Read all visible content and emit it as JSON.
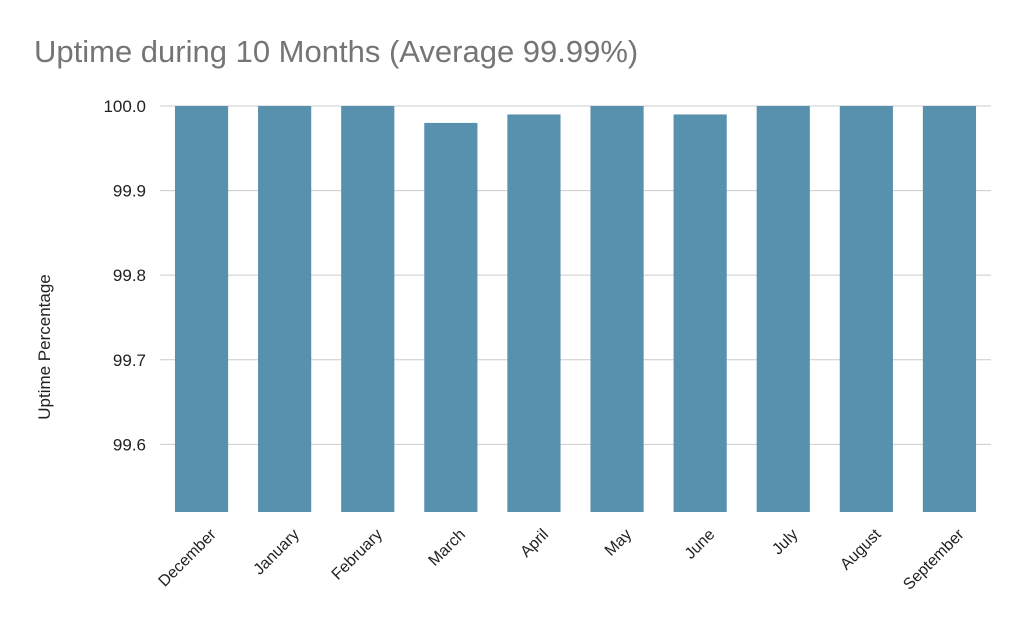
{
  "chart_data": {
    "type": "bar",
    "title": "Uptime during 10 Months (Average 99.99%)",
    "xlabel": "",
    "ylabel": "Uptime Percentage",
    "categories": [
      "December",
      "January",
      "February",
      "March",
      "April",
      "May",
      "June",
      "July",
      "August",
      "September"
    ],
    "values": [
      100.0,
      100.0,
      100.0,
      99.98,
      99.99,
      100.0,
      99.99,
      100.0,
      100.0,
      100.0
    ],
    "ylim": [
      99.52,
      100.0
    ],
    "yticks": [
      "99.6",
      "99.7",
      "99.8",
      "99.9",
      "100.0"
    ],
    "grid": true,
    "legend": "none",
    "bar_color": "#5891ae",
    "grid_color": "#cccccc",
    "title_color": "#757575"
  }
}
